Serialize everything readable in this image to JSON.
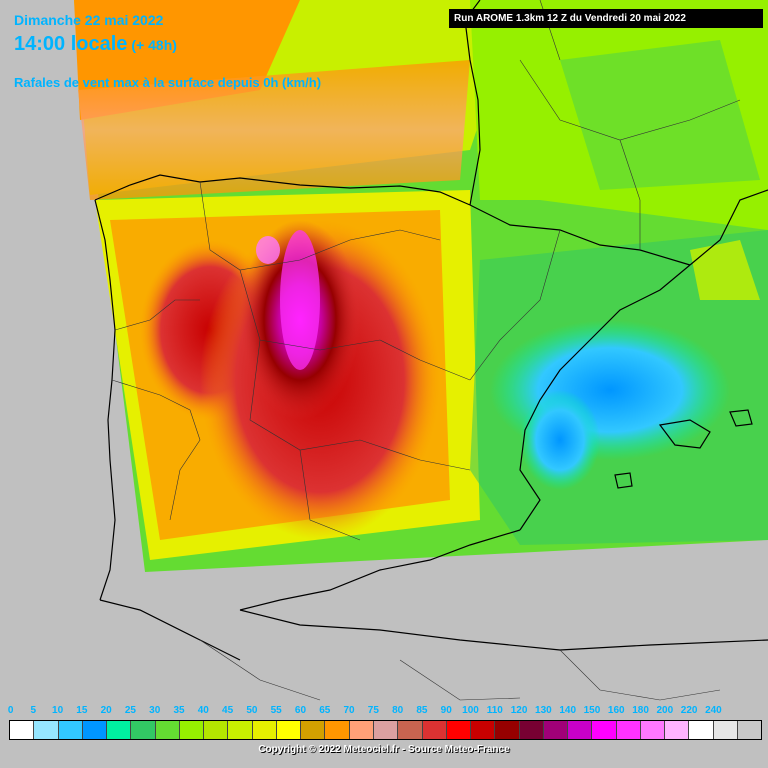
{
  "header": {
    "date": "Dimanche 22 mai 2022",
    "time": "14:00 locale",
    "lead": "(+ 48h)",
    "parameter": "Rafales de vent max à la surface depuis 0h (km/h)",
    "run": "Run AROME 1.3km 12 Z du Vendredi 20 mai 2022"
  },
  "legend": {
    "values": [
      "0",
      "5",
      "10",
      "15",
      "20",
      "25",
      "30",
      "35",
      "40",
      "45",
      "50",
      "55",
      "60",
      "65",
      "70",
      "75",
      "80",
      "85",
      "90",
      "100",
      "110",
      "120",
      "130",
      "140",
      "150",
      "160",
      "180",
      "200",
      "220",
      "240"
    ],
    "colors": [
      "#ffffff",
      "#96e6ff",
      "#32c8ff",
      "#0096ff",
      "#00f0a0",
      "#32c864",
      "#64dc32",
      "#96f000",
      "#b4e600",
      "#c8f000",
      "#e6f000",
      "#ffff00",
      "#d2a000",
      "#ff9600",
      "#ffa078",
      "#dca0a0",
      "#c86450",
      "#dc3232",
      "#ff0000",
      "#c80000",
      "#960000",
      "#780032",
      "#a00078",
      "#c800c8",
      "#ff00ff",
      "#ff32ff",
      "#ff78ff",
      "#ffb4ff",
      "#ffffff",
      "#e6e6e6",
      "#c8c8c8"
    ]
  },
  "footer": {
    "copyright": "Copyright © 2022 Meteociel.fr - Source Meteo-France"
  }
}
